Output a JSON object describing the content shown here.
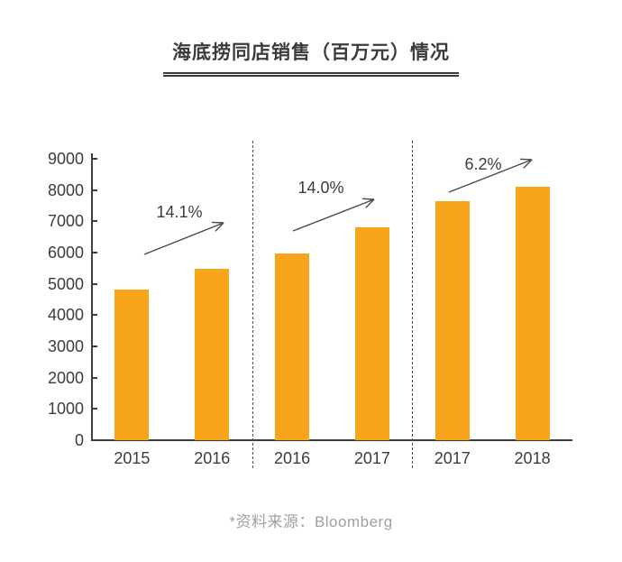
{
  "title": "海底捞同店销售（百万元）情况",
  "source_note": "*资料来源：Bloomberg",
  "colors": {
    "bar": "#F9A51C",
    "axis": "#3d3d3d",
    "text": "#3c3c3c",
    "note": "#a0a0a0",
    "arrow": "#4a4a4a"
  },
  "chart_data": {
    "type": "bar",
    "title": "海底捞同店销售（百万元）情况",
    "categories": [
      "2015",
      "2016",
      "2016",
      "2017",
      "2017",
      "2018"
    ],
    "values": [
      4810,
      5490,
      5980,
      6820,
      7640,
      8110
    ],
    "groups": [
      {
        "years": [
          "2015",
          "2016"
        ],
        "values": [
          4810,
          5490
        ],
        "growth_label": "14.1%"
      },
      {
        "years": [
          "2016",
          "2017"
        ],
        "values": [
          5980,
          6820
        ],
        "growth_label": "14.0%"
      },
      {
        "years": [
          "2017",
          "2018"
        ],
        "values": [
          7640,
          8110
        ],
        "growth_label": "6.2%"
      }
    ],
    "xlabel": "",
    "ylabel": "",
    "ylim": [
      0,
      9000
    ],
    "ytick_step": 1000,
    "ytick_labels": [
      "0",
      "1000",
      "2000",
      "3000",
      "4000",
      "5000",
      "6000",
      "7000",
      "8000",
      "9000"
    ],
    "grid": false,
    "legend": false,
    "annotation_style": "growth-arrows-between-bars",
    "source": "Bloomberg"
  }
}
